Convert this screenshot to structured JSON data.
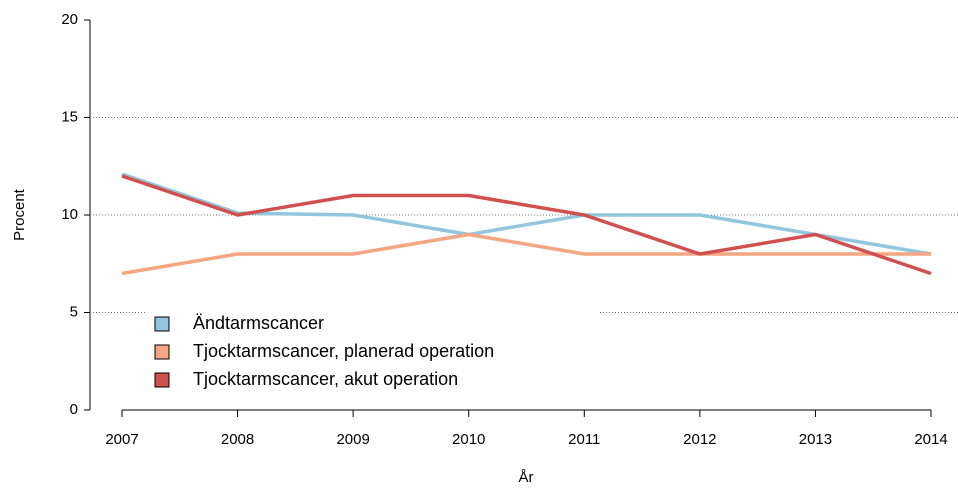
{
  "chart_data": {
    "type": "line",
    "x_label": "År",
    "y_label": "Procent",
    "x": [
      2007,
      2008,
      2009,
      2010,
      2011,
      2012,
      2013,
      2014
    ],
    "xlim": [
      2007,
      2014
    ],
    "xticks": [
      2007,
      2008,
      2009,
      2010,
      2011,
      2012,
      2013,
      2014
    ],
    "ylim": [
      0,
      20
    ],
    "yticks": [
      0,
      5,
      10,
      15,
      20
    ],
    "grid": true,
    "legend": "bottom-left",
    "series": [
      {
        "name": "Ändtarmscancer",
        "color": "#92c5de",
        "values": [
          12.1,
          10.1,
          10,
          9,
          10,
          10,
          9,
          8
        ]
      },
      {
        "name": "Tjocktarmscancer, planerad operation",
        "color": "#f4a582",
        "values": [
          7,
          8,
          8,
          9,
          8,
          8,
          8,
          8
        ]
      },
      {
        "name": "Tjocktarmscancer, akut operation",
        "color": "#d05050",
        "values": [
          12,
          10,
          11,
          11,
          10,
          8,
          9,
          7
        ]
      }
    ]
  }
}
